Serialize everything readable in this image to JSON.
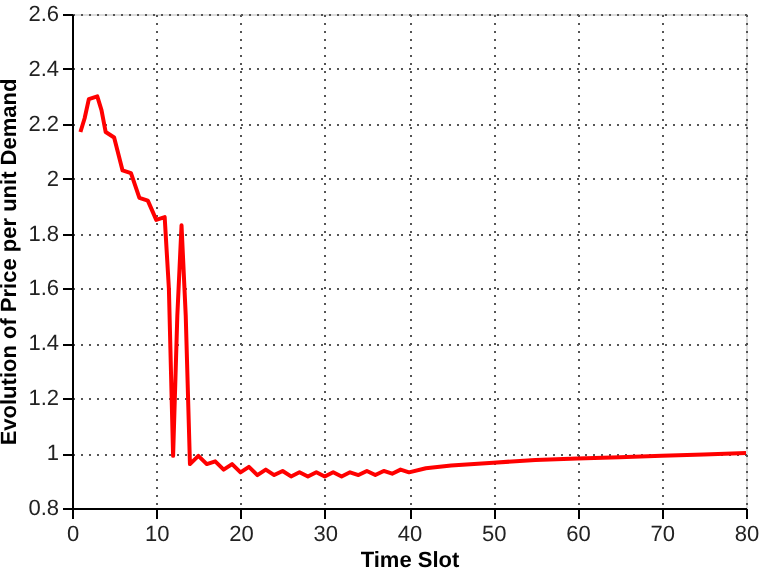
{
  "chart_data": {
    "type": "line",
    "xlabel": "Time Slot",
    "ylabel": "Evolution of Price per unit Demand",
    "xlim": [
      0,
      80
    ],
    "xticks": [
      0,
      10,
      20,
      30,
      40,
      50,
      60,
      70,
      80
    ],
    "ylim": [
      0.8,
      2.6
    ],
    "yticks": [
      0.8,
      1,
      1.2,
      1.4,
      1.6,
      1.8,
      2,
      2.2,
      2.4,
      2.6
    ],
    "grid": true,
    "line_style": "solid",
    "marker": "none",
    "series": [
      {
        "color": "#ff0000",
        "x": [
          1,
          1.5,
          2,
          3,
          3.5,
          4,
          5,
          6,
          7,
          8,
          9,
          10,
          11,
          11.5,
          12,
          12.5,
          13,
          13.5,
          14,
          15,
          16,
          17,
          18,
          19,
          20,
          21,
          22,
          23,
          24,
          25,
          26,
          27,
          28,
          29,
          30,
          31,
          32,
          33,
          34,
          35,
          36,
          37,
          38,
          39,
          40,
          42,
          45,
          50,
          55,
          60,
          65,
          70,
          75,
          80
        ],
        "values": [
          2.17,
          2.22,
          2.29,
          2.3,
          2.25,
          2.17,
          2.15,
          2.03,
          2.02,
          1.93,
          1.92,
          1.85,
          1.86,
          1.6,
          0.99,
          1.5,
          1.83,
          1.5,
          0.96,
          0.99,
          0.96,
          0.97,
          0.94,
          0.96,
          0.93,
          0.95,
          0.92,
          0.94,
          0.92,
          0.935,
          0.915,
          0.93,
          0.915,
          0.93,
          0.915,
          0.93,
          0.915,
          0.93,
          0.92,
          0.935,
          0.92,
          0.935,
          0.925,
          0.94,
          0.93,
          0.945,
          0.955,
          0.965,
          0.975,
          0.98,
          0.985,
          0.99,
          0.995,
          1.0
        ]
      }
    ]
  }
}
